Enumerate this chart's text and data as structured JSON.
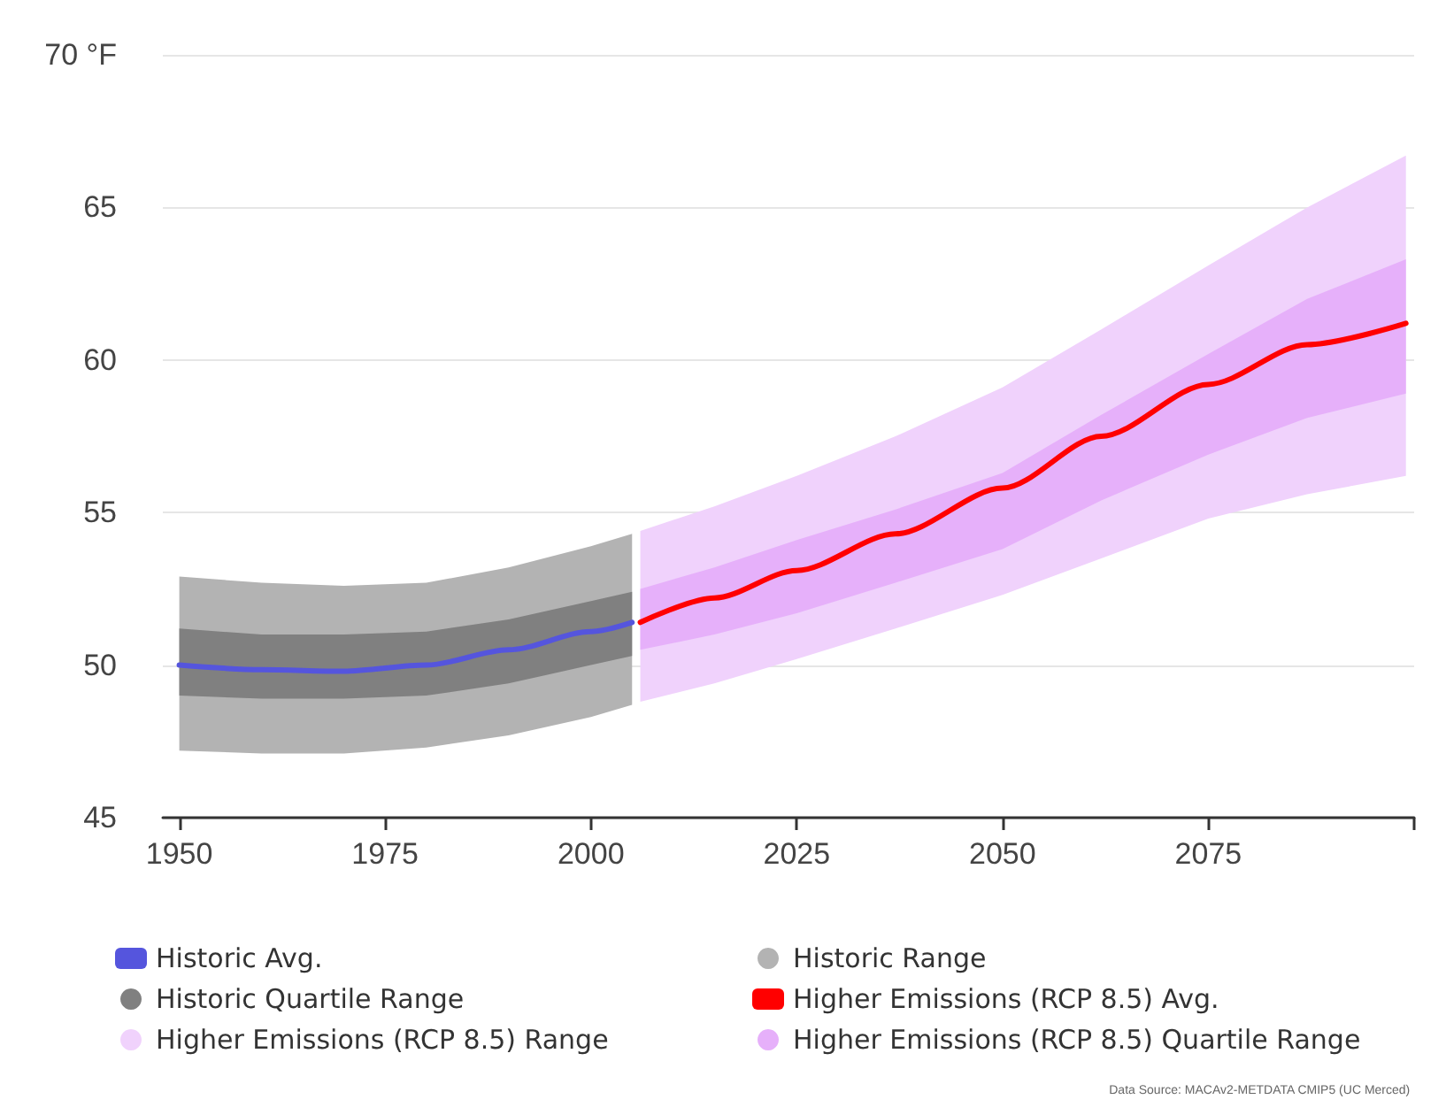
{
  "chart_data": {
    "type": "line",
    "xlim": [
      1948,
      2100
    ],
    "xticks": [
      1950,
      1975,
      2000,
      2025,
      2050,
      2075,
      {
        "value": 2100,
        "label": null
      }
    ],
    "ylim": [
      45,
      70
    ],
    "yticks": [
      45,
      50,
      55,
      60,
      {
        "value": 65,
        "label": "65"
      },
      {
        "value": 70,
        "label": "70 °F"
      }
    ],
    "grid": "y",
    "legend": "bottom",
    "marker": "none",
    "line_style": "solid",
    "annotations": [
      "Data Source: MACAv2-METDATA CMIP5 (UC Merced)"
    ],
    "series": [
      {
        "name": "Historic Range",
        "type": "area",
        "color": "#b3b3b3",
        "x": [
          1950,
          1960,
          1970,
          1980,
          1990,
          2000,
          2005
        ],
        "values": [
          null,
          null,
          null,
          null,
          null,
          null,
          null
        ],
        "lower": [
          47.2,
          47.1,
          47.1,
          47.3,
          47.7,
          48.3,
          48.7
        ],
        "upper": [
          52.9,
          52.7,
          52.6,
          52.7,
          53.2,
          53.9,
          54.3
        ]
      },
      {
        "name": "Historic Quartile Range",
        "type": "area",
        "color": "#808080",
        "x": [
          1950,
          1960,
          1970,
          1980,
          1990,
          2000,
          2005
        ],
        "values": [
          null,
          null,
          null,
          null,
          null,
          null,
          null
        ],
        "lower": [
          49.0,
          48.9,
          48.9,
          49.0,
          49.4,
          50.0,
          50.3
        ],
        "upper": [
          51.2,
          51.0,
          51.0,
          51.1,
          51.5,
          52.1,
          52.4
        ]
      },
      {
        "name": "Historic Avg.",
        "color": "#5555dd",
        "x": [
          1950,
          1960,
          1970,
          1980,
          1990,
          2000,
          2005
        ],
        "values": [
          50.0,
          49.85,
          49.8,
          50.0,
          50.5,
          51.1,
          51.4
        ]
      },
      {
        "name": "Higher Emissions (RCP 8.5) Range",
        "type": "area",
        "color": "#f0d2fc",
        "x": [
          2006,
          2015,
          2025,
          2037,
          2050,
          2062,
          2075,
          2087,
          2099
        ],
        "values": [
          null,
          null,
          null,
          null,
          null,
          null,
          null,
          null,
          null
        ],
        "lower": [
          48.8,
          49.4,
          50.2,
          51.2,
          52.3,
          53.5,
          54.8,
          55.6,
          56.2
        ],
        "upper": [
          54.4,
          55.2,
          56.2,
          57.5,
          59.1,
          61.0,
          63.1,
          65.0,
          66.7
        ]
      },
      {
        "name": "Higher Emissions (RCP 8.5) Quartile Range",
        "type": "area",
        "color": "#e6b0fa",
        "x": [
          2006,
          2015,
          2025,
          2037,
          2050,
          2062,
          2075,
          2087,
          2099
        ],
        "values": [
          null,
          null,
          null,
          null,
          null,
          null,
          null,
          null,
          null
        ],
        "lower": [
          50.5,
          51.0,
          51.7,
          52.7,
          53.8,
          55.4,
          56.9,
          58.1,
          58.9
        ],
        "upper": [
          52.5,
          53.2,
          54.1,
          55.1,
          56.3,
          58.2,
          60.2,
          62.0,
          63.3
        ]
      },
      {
        "name": "Higher Emissions (RCP 8.5) Avg.",
        "color": "#ff0000",
        "x": [
          2006,
          2015,
          2025,
          2037,
          2050,
          2062,
          2075,
          2087,
          2099
        ],
        "values": [
          51.4,
          52.2,
          53.1,
          54.3,
          55.8,
          57.5,
          59.2,
          60.5,
          61.2
        ]
      }
    ]
  }
}
